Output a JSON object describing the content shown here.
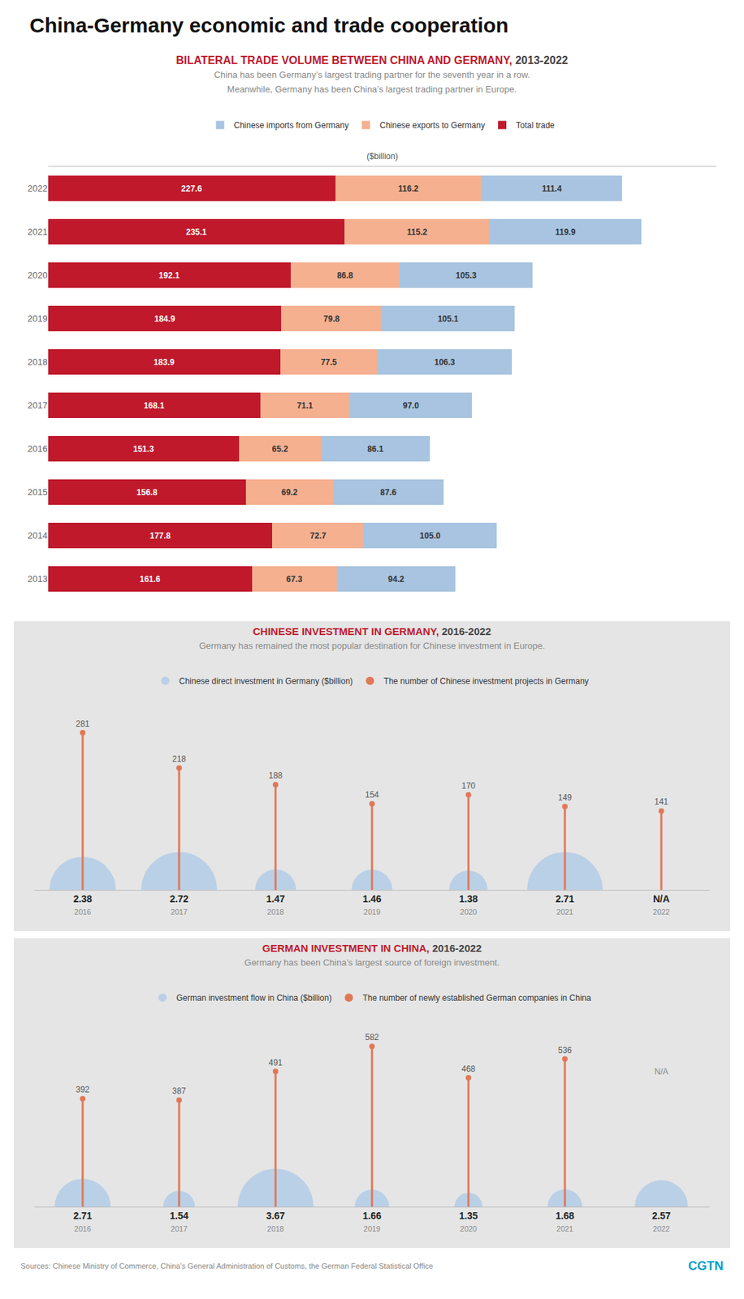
{
  "title": "China-Germany economic and trade cooperation",
  "annotations": [
    {
      "text": "Sources: Chinese Ministry of Commerce, China's General Administration of Customs, the German Federal Statistical Office"
    },
    {
      "text": "CGTN",
      "color": "#00a0c6"
    }
  ],
  "chart_data": [
    {
      "type": "bar",
      "orientation": "horizontal",
      "stacked": true,
      "title": "BILATERAL TRADE VOLUME BETWEEN CHINA AND GERMANY, 2013-2022",
      "subtitle": [
        "China has been Germany’s largest trading partner for the seventh year in a row.",
        "Meanwhile, Germany has been China’s largest trading partner in Europe."
      ],
      "xlabel": "($billion)",
      "categories": [
        "2022",
        "2021",
        "2020",
        "2019",
        "2018",
        "2017",
        "2016",
        "2015",
        "2014",
        "2013"
      ],
      "series": [
        {
          "name": "Total trade",
          "color": "#c0192c",
          "values": [
            227.6,
            235.1,
            192.1,
            184.9,
            183.9,
            168.1,
            151.3,
            156.8,
            177.8,
            161.6
          ]
        },
        {
          "name": "Chinese exports to Germany",
          "color": "#f5b090",
          "values": [
            116.2,
            115.2,
            86.8,
            79.8,
            77.5,
            71.1,
            65.2,
            69.2,
            72.7,
            67.3
          ]
        },
        {
          "name": "Chinese imports from Germany",
          "color": "#a8c4e0",
          "values": [
            111.4,
            119.9,
            105.3,
            105.1,
            106.3,
            97.0,
            86.1,
            87.6,
            105.0,
            94.2
          ],
          "value_labels": [
            "111.4",
            "119.9",
            "105.3",
            "105.1",
            "106.3",
            "97.0",
            "86.1",
            "87.6",
            "105.0",
            "94.2"
          ]
        }
      ],
      "xlim": [
        0,
        530
      ],
      "grid": false,
      "data_labels": true,
      "tick_labels": "y",
      "legend": "top"
    },
    {
      "type": "lollipop",
      "title": "CHINESE INVESTMENT IN GERMANY, 2016-2022",
      "subtitle": "Germany has remained the most popular destination for Chinese investment in Europe.",
      "categories": [
        "2016",
        "2017",
        "2018",
        "2019",
        "2020",
        "2021",
        "2022"
      ],
      "series": [
        {
          "name": "Chinese direct investment in Germany ($billion)",
          "type": "semicircle",
          "color": "#a8c8e8",
          "values": [
            2.38,
            2.72,
            1.47,
            1.46,
            1.38,
            2.71,
            null
          ],
          "value_labels": [
            "2.38",
            "2.72",
            "1.47",
            "1.46",
            "1.38",
            "2.71",
            "N/A"
          ]
        },
        {
          "name": "The number of Chinese investment projects in Germany",
          "type": "lollipop",
          "color": "#e07858",
          "values": [
            281,
            218,
            188,
            154,
            170,
            149,
            141
          ]
        }
      ],
      "ylim": [
        0,
        320
      ],
      "grid": false,
      "data_labels": true,
      "tick_labels": "x",
      "legend": "top"
    },
    {
      "type": "lollipop",
      "title": "GERMAN INVESTMENT IN CHINA, 2016-2022",
      "subtitle": "Germany has been China’s largest source of foreign investment.",
      "categories": [
        "2016",
        "2017",
        "2018",
        "2019",
        "2020",
        "2021",
        "2022"
      ],
      "series": [
        {
          "name": "German investment flow in China ($billion)",
          "type": "semicircle",
          "color": "#a8c8e8",
          "values": [
            2.71,
            1.54,
            3.67,
            1.66,
            1.35,
            1.68,
            2.57
          ]
        },
        {
          "name": "The number of newly established German companies in China",
          "type": "lollipop",
          "color": "#e07858",
          "values": [
            392,
            387,
            491,
            582,
            468,
            536,
            null
          ],
          "value_labels": [
            "392",
            "387",
            "491",
            "582",
            "468",
            "536",
            "N/A"
          ]
        }
      ],
      "ylim": [
        0,
        650
      ],
      "grid": false,
      "data_labels": true,
      "tick_labels": "x",
      "legend": "top"
    }
  ]
}
